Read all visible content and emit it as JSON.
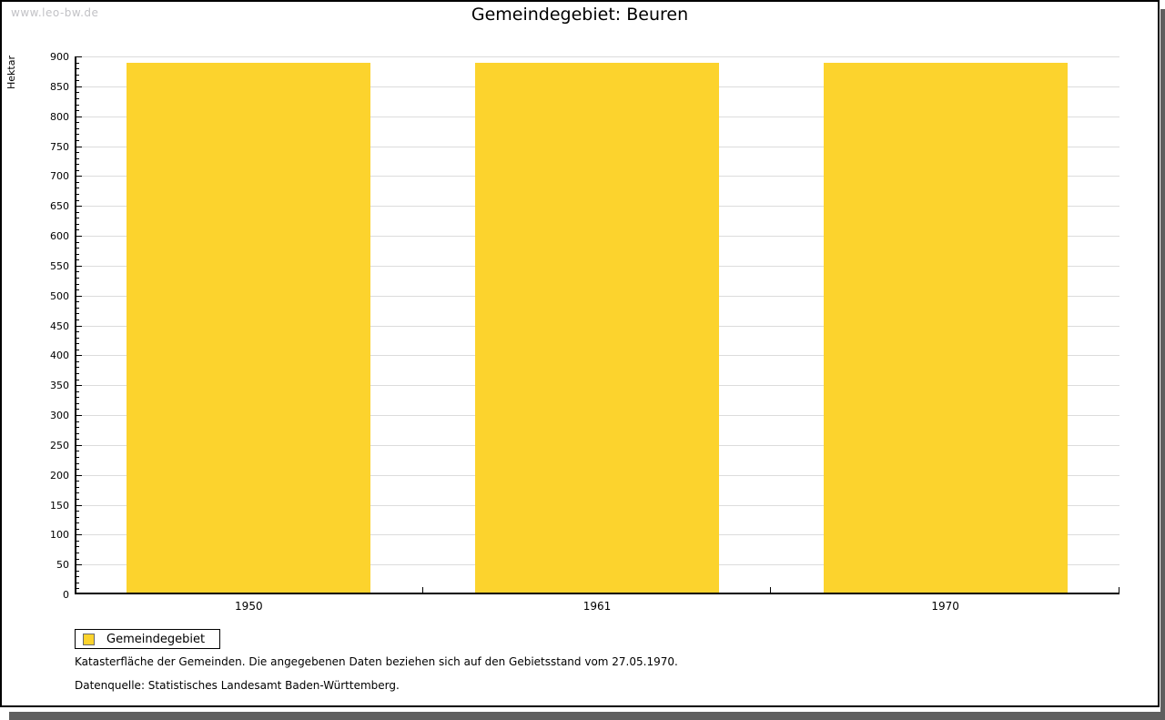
{
  "watermark": "www.leo-bw.de",
  "title": "Gemeindegebiet: Beuren",
  "legend": {
    "label": "Gemeindegebiet"
  },
  "footnotes": [
    "Katasterfläche der Gemeinden. Die angegebenen Daten beziehen sich auf den Gebietsstand vom 27.05.1970.",
    "Datenquelle: Statistisches Landesamt Baden-Württemberg."
  ],
  "colors": {
    "bar": "#fcd32d",
    "grid": "#dcdcdc",
    "axis": "#000000",
    "shadow": "#5f5f5f",
    "watermark": "#c2c2c6"
  },
  "chart_data": {
    "type": "bar",
    "title": "Gemeindegebiet: Beuren",
    "categories": [
      "1950",
      "1961",
      "1970"
    ],
    "series": [
      {
        "name": "Gemeindegebiet",
        "values": [
          890,
          890,
          890
        ],
        "color": "#fcd32d"
      }
    ],
    "xlabel": "",
    "ylabel": "Hektar",
    "ylim": [
      0,
      900
    ],
    "y_major_step": 50,
    "y_minor_step": 10,
    "grid": "horizontal-major-on",
    "legend_position": "bottom-left",
    "bar_width_fraction": 0.7
  }
}
